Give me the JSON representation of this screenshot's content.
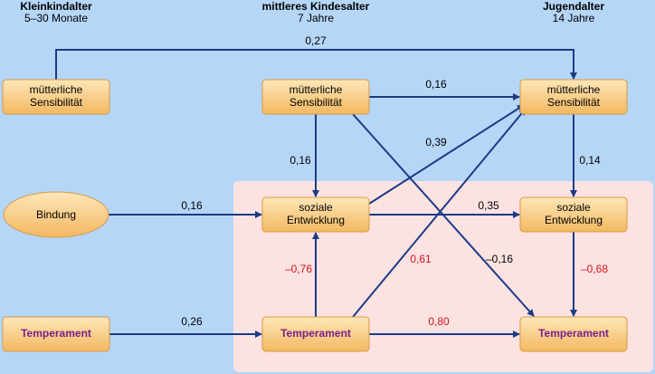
{
  "columns": [
    {
      "title": "Kleinkindalter",
      "subtitle": "5–30 Monate"
    },
    {
      "title": "mittleres Kindesalter",
      "subtitle": "7 Jahre"
    },
    {
      "title": "Jugendalter",
      "subtitle": "14 Jahre"
    }
  ],
  "nodes": [
    {
      "lines": [
        "mütterliche",
        "Sensibilität"
      ]
    },
    {
      "lines": [
        "mütterliche",
        "Sensibilität"
      ]
    },
    {
      "lines": [
        "mütterliche",
        "Sensibilität"
      ]
    },
    {
      "lines": [
        "Bindung"
      ]
    },
    {
      "lines": [
        "soziale",
        "Entwicklung"
      ]
    },
    {
      "lines": [
        "soziale",
        "Entwicklung"
      ]
    },
    {
      "lines": [
        "Temperament"
      ]
    },
    {
      "lines": [
        "Temperament"
      ]
    },
    {
      "lines": [
        "Temperament"
      ]
    }
  ],
  "edges": [
    {
      "label": "0,27"
    },
    {
      "label": "0,16"
    },
    {
      "label": "0,16"
    },
    {
      "label": "–0,16"
    },
    {
      "label": "0,39"
    },
    {
      "label": "0,16"
    },
    {
      "label": "0,35"
    },
    {
      "label": "0,14"
    },
    {
      "label": "–0,68"
    },
    {
      "label": "–0,76"
    },
    {
      "label": "0,61"
    },
    {
      "label": "0,26"
    },
    {
      "label": "0,80"
    }
  ]
}
